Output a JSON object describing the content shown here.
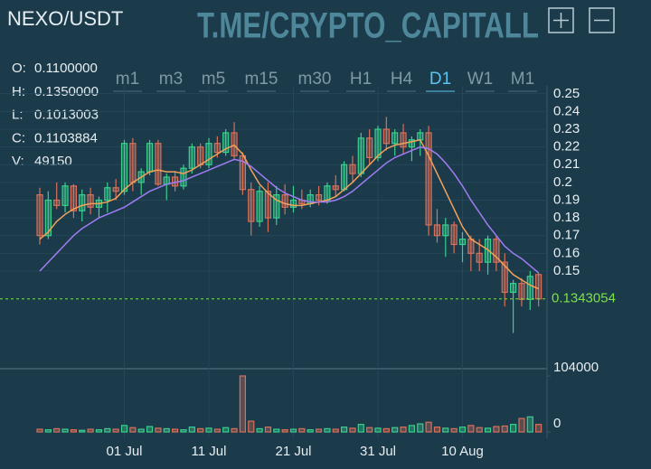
{
  "header": {
    "symbol": "NEXO/USDT",
    "watermark": "T.ME/CRYPTO_CAPITALL"
  },
  "timeframes": {
    "items": [
      "m1",
      "m3",
      "m5",
      "m15",
      "m30",
      "H1",
      "H4",
      "D1",
      "W1",
      "M1"
    ],
    "active": "D1"
  },
  "info": [
    {
      "label": "O:",
      "value": "0.1100000"
    },
    {
      "label": "H:",
      "value": "0.1350000"
    },
    {
      "label": "L:",
      "value": "0.1013003"
    },
    {
      "label": "C:",
      "value": "0.1103884"
    },
    {
      "label": "V:",
      "value": "49150"
    }
  ],
  "chart_data": {
    "type": "candlestick",
    "categories": [
      null,
      null,
      null,
      null,
      null,
      null,
      null,
      null,
      null,
      null,
      "01 Jul",
      null,
      null,
      null,
      null,
      null,
      null,
      null,
      null,
      null,
      "11 Jul",
      null,
      null,
      null,
      null,
      null,
      null,
      null,
      null,
      null,
      "21 Jul",
      null,
      null,
      null,
      null,
      null,
      null,
      null,
      null,
      null,
      "31 Jul",
      null,
      null,
      null,
      null,
      null,
      null,
      null,
      null,
      null,
      "10 Aug",
      null,
      null,
      null,
      null,
      null,
      null,
      null,
      null,
      null
    ],
    "open": [
      0.193,
      0.17,
      0.19,
      0.187,
      0.198,
      0.184,
      0.193,
      0.186,
      0.19,
      0.197,
      0.195,
      0.222,
      0.2,
      0.206,
      0.222,
      0.199,
      0.203,
      0.198,
      0.208,
      0.22,
      0.21,
      0.222,
      0.217,
      0.228,
      0.215,
      0.196,
      0.178,
      0.195,
      0.18,
      0.193,
      0.186,
      0.19,
      0.188,
      0.193,
      0.19,
      0.198,
      0.196,
      0.21,
      0.205,
      0.225,
      0.214,
      0.23,
      0.222,
      0.228,
      0.22,
      0.224,
      0.228,
      0.176,
      0.17,
      0.176,
      0.165,
      0.168,
      0.16,
      0.155,
      0.168,
      0.155,
      0.138,
      0.143,
      0.134,
      0.148
    ],
    "high": [
      0.197,
      0.195,
      0.2,
      0.2,
      0.199,
      0.196,
      0.197,
      0.192,
      0.2,
      0.202,
      0.224,
      0.225,
      0.208,
      0.224,
      0.224,
      0.205,
      0.206,
      0.21,
      0.222,
      0.222,
      0.225,
      0.226,
      0.23,
      0.234,
      0.217,
      0.2,
      0.198,
      0.2,
      0.198,
      0.199,
      0.198,
      0.196,
      0.196,
      0.198,
      0.2,
      0.204,
      0.212,
      0.215,
      0.228,
      0.23,
      0.232,
      0.237,
      0.23,
      0.233,
      0.226,
      0.23,
      0.232,
      0.185,
      0.18,
      0.178,
      0.172,
      0.17,
      0.168,
      0.17,
      0.17,
      0.16,
      0.145,
      0.146,
      0.15,
      0.149
    ],
    "low": [
      0.165,
      0.168,
      0.185,
      0.183,
      0.18,
      0.178,
      0.182,
      0.18,
      0.183,
      0.19,
      0.193,
      0.195,
      0.193,
      0.204,
      0.198,
      0.19,
      0.195,
      0.196,
      0.205,
      0.208,
      0.208,
      0.214,
      0.215,
      0.213,
      0.193,
      0.17,
      0.175,
      0.172,
      0.176,
      0.182,
      0.183,
      0.185,
      0.186,
      0.187,
      0.188,
      0.192,
      0.195,
      0.2,
      0.203,
      0.21,
      0.212,
      0.218,
      0.215,
      0.216,
      0.212,
      0.215,
      0.17,
      0.166,
      0.158,
      0.16,
      0.155,
      0.15,
      0.15,
      0.148,
      0.15,
      0.13,
      0.115,
      0.13,
      0.128,
      0.13
    ],
    "close": [
      0.17,
      0.19,
      0.187,
      0.198,
      0.184,
      0.193,
      0.186,
      0.19,
      0.197,
      0.195,
      0.222,
      0.2,
      0.206,
      0.222,
      0.199,
      0.203,
      0.198,
      0.208,
      0.22,
      0.21,
      0.222,
      0.217,
      0.228,
      0.215,
      0.196,
      0.178,
      0.195,
      0.18,
      0.193,
      0.186,
      0.19,
      0.188,
      0.193,
      0.19,
      0.198,
      0.196,
      0.21,
      0.205,
      0.225,
      0.214,
      0.23,
      0.222,
      0.228,
      0.22,
      0.224,
      0.228,
      0.176,
      0.17,
      0.176,
      0.165,
      0.168,
      0.16,
      0.155,
      0.168,
      0.155,
      0.138,
      0.143,
      0.134,
      0.147,
      0.1343054
    ],
    "volume": [
      5000,
      4000,
      6000,
      5000,
      4000,
      3000,
      5000,
      4000,
      6000,
      5000,
      12000,
      8000,
      5000,
      10000,
      7000,
      6000,
      5000,
      4000,
      9000,
      6000,
      7000,
      5000,
      8000,
      6000,
      104000,
      20000,
      6000,
      9000,
      5000,
      4000,
      5000,
      6000,
      4000,
      5000,
      6000,
      5000,
      9000,
      7000,
      14000,
      8000,
      7000,
      6000,
      8000,
      9000,
      12000,
      15000,
      18000,
      9000,
      7000,
      6000,
      9000,
      12000,
      8000,
      7000,
      10000,
      11000,
      14000,
      25000,
      28000,
      14000
    ],
    "up_color": "#3ccf8e",
    "down_color": "#d9705a",
    "lines": [
      {
        "color": "#f2a25a",
        "values": [
          0.168,
          0.172,
          0.178,
          0.182,
          0.185,
          0.187,
          0.188,
          0.188,
          0.189,
          0.191,
          0.196,
          0.2,
          0.203,
          0.206,
          0.207,
          0.206,
          0.206,
          0.205,
          0.207,
          0.21,
          0.213,
          0.216,
          0.219,
          0.221,
          0.216,
          0.207,
          0.199,
          0.194,
          0.19,
          0.188,
          0.187,
          0.187,
          0.188,
          0.189,
          0.19,
          0.192,
          0.196,
          0.2,
          0.205,
          0.21,
          0.215,
          0.219,
          0.221,
          0.222,
          0.223,
          0.224,
          0.215,
          0.205,
          0.195,
          0.185,
          0.175,
          0.168,
          0.165,
          0.162,
          0.158,
          0.153,
          0.148,
          0.145,
          0.142,
          0.14
        ]
      },
      {
        "color": "#a07cf2",
        "values": [
          0.15,
          0.155,
          0.16,
          0.165,
          0.17,
          0.174,
          0.177,
          0.18,
          0.182,
          0.184,
          0.186,
          0.189,
          0.192,
          0.195,
          0.197,
          0.199,
          0.2,
          0.201,
          0.203,
          0.205,
          0.207,
          0.209,
          0.211,
          0.213,
          0.212,
          0.209,
          0.205,
          0.201,
          0.197,
          0.194,
          0.192,
          0.19,
          0.189,
          0.189,
          0.189,
          0.19,
          0.192,
          0.195,
          0.199,
          0.203,
          0.207,
          0.211,
          0.214,
          0.216,
          0.218,
          0.22,
          0.219,
          0.216,
          0.211,
          0.205,
          0.198,
          0.19,
          0.183,
          0.176,
          0.17,
          0.164,
          0.16,
          0.157,
          0.153,
          0.149
        ]
      }
    ],
    "last_price": {
      "value": 0.1343054,
      "label": "0.1343054",
      "color": "#7ee04a"
    },
    "ylim": [
      0.1,
      0.255
    ],
    "yticks": [
      0.15,
      0.16,
      0.17,
      0.18,
      0.19,
      0.2,
      0.21,
      0.22,
      0.23,
      0.24,
      0.25
    ],
    "vlim": [
      0,
      104000
    ],
    "vticks": [
      0,
      104000
    ],
    "grid": true
  }
}
